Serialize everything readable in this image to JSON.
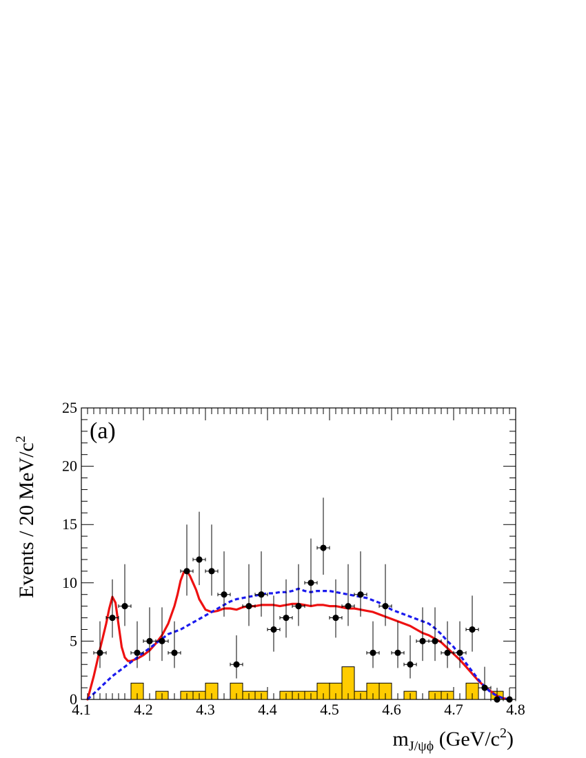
{
  "chart_data": {
    "type": "scatter",
    "panel_label": "(a)",
    "xlabel": {
      "main": "m",
      "sub": "J/ψϕ",
      "unit_pre": " (GeV/c",
      "unit_sup": "2",
      "unit_post": ")"
    },
    "ylabel": {
      "main": "Events / 20 MeV/c",
      "sup": "2"
    },
    "xlim": [
      4.1,
      4.8
    ],
    "ylim": [
      0,
      25
    ],
    "x_ticks": [
      "4.1",
      "4.2",
      "4.3",
      "4.4",
      "4.5",
      "4.6",
      "4.7",
      "4.8"
    ],
    "y_ticks": [
      "0",
      "5",
      "10",
      "15",
      "20",
      "25"
    ],
    "grid": false,
    "data_points": {
      "x": [
        4.13,
        4.15,
        4.17,
        4.19,
        4.21,
        4.23,
        4.25,
        4.27,
        4.29,
        4.31,
        4.33,
        4.35,
        4.37,
        4.39,
        4.41,
        4.43,
        4.45,
        4.47,
        4.49,
        4.51,
        4.53,
        4.55,
        4.57,
        4.59,
        4.61,
        4.63,
        4.65,
        4.67,
        4.69,
        4.71,
        4.73,
        4.75,
        4.77,
        4.79
      ],
      "y": [
        4,
        7,
        8,
        4,
        5,
        5,
        4,
        11,
        12,
        11,
        9,
        3,
        8,
        9,
        6,
        7,
        8,
        10,
        13,
        7,
        8,
        9,
        4,
        8,
        4,
        3,
        5,
        5,
        4,
        4,
        6,
        1,
        0,
        0
      ],
      "x_half_width": 0.01,
      "color": "#000000"
    },
    "background_histogram": {
      "bin_width": 0.02,
      "bin_starts": [
        4.18,
        4.22,
        4.26,
        4.28,
        4.3,
        4.34,
        4.36,
        4.38,
        4.42,
        4.44,
        4.46,
        4.48,
        4.5,
        4.52,
        4.54,
        4.56,
        4.58,
        4.62,
        4.66,
        4.68,
        4.72,
        4.76
      ],
      "values": [
        1.4,
        0.7,
        0.7,
        0.7,
        1.4,
        1.4,
        0.7,
        0.7,
        0.7,
        0.7,
        0.7,
        1.4,
        1.4,
        2.8,
        0.7,
        1.4,
        1.4,
        0.7,
        0.7,
        0.7,
        1.4,
        0.7
      ],
      "fill_color": "#ffcc00",
      "edge_color": "#000000"
    },
    "series": [
      {
        "style": "solid",
        "color": "#ee1111",
        "x": [
          4.11,
          4.12,
          4.13,
          4.14,
          4.145,
          4.15,
          4.155,
          4.16,
          4.165,
          4.17,
          4.175,
          4.18,
          4.19,
          4.2,
          4.21,
          4.22,
          4.23,
          4.24,
          4.25,
          4.255,
          4.26,
          4.265,
          4.27,
          4.275,
          4.28,
          4.285,
          4.29,
          4.3,
          4.31,
          4.32,
          4.33,
          4.34,
          4.35,
          4.36,
          4.37,
          4.38,
          4.39,
          4.4,
          4.41,
          4.42,
          4.43,
          4.44,
          4.45,
          4.46,
          4.47,
          4.48,
          4.49,
          4.5,
          4.51,
          4.52,
          4.53,
          4.54,
          4.55,
          4.56,
          4.57,
          4.58,
          4.59,
          4.6,
          4.61,
          4.62,
          4.63,
          4.64,
          4.65,
          4.66,
          4.67,
          4.68,
          4.69,
          4.7,
          4.71,
          4.72,
          4.73,
          4.74,
          4.75,
          4.76,
          4.77,
          4.78,
          4.79
        ],
        "y": [
          0.0,
          2.0,
          4.3,
          6.5,
          7.8,
          8.8,
          8.3,
          6.4,
          4.5,
          3.6,
          3.3,
          3.3,
          3.5,
          3.8,
          4.2,
          4.8,
          5.5,
          6.5,
          8.0,
          9.0,
          10.2,
          10.9,
          11.0,
          10.6,
          10.0,
          9.4,
          8.6,
          7.7,
          7.5,
          7.6,
          7.8,
          7.8,
          7.7,
          7.9,
          8.0,
          8.0,
          8.1,
          8.1,
          8.1,
          8.0,
          8.1,
          8.2,
          8.2,
          8.1,
          8.0,
          8.1,
          8.1,
          8.0,
          8.0,
          7.9,
          7.8,
          7.8,
          7.7,
          7.6,
          7.5,
          7.3,
          7.1,
          6.9,
          6.7,
          6.5,
          6.3,
          6.0,
          5.7,
          5.5,
          5.2,
          4.9,
          4.4,
          3.9,
          3.4,
          2.8,
          2.2,
          1.6,
          1.1,
          0.7,
          0.3,
          0.1,
          0.0
        ]
      },
      {
        "style": "dashed",
        "color": "#1a1aee",
        "x": [
          4.11,
          4.12,
          4.13,
          4.14,
          4.15,
          4.16,
          4.17,
          4.18,
          4.19,
          4.2,
          4.21,
          4.22,
          4.23,
          4.24,
          4.25,
          4.26,
          4.27,
          4.28,
          4.29,
          4.3,
          4.31,
          4.32,
          4.33,
          4.34,
          4.35,
          4.36,
          4.37,
          4.38,
          4.39,
          4.4,
          4.41,
          4.42,
          4.43,
          4.44,
          4.45,
          4.46,
          4.47,
          4.48,
          4.49,
          4.5,
          4.51,
          4.52,
          4.53,
          4.54,
          4.55,
          4.56,
          4.57,
          4.58,
          4.59,
          4.6,
          4.61,
          4.62,
          4.63,
          4.64,
          4.65,
          4.66,
          4.67,
          4.68,
          4.69,
          4.7,
          4.71,
          4.72,
          4.73,
          4.74,
          4.75,
          4.76,
          4.77,
          4.78,
          4.79
        ],
        "y": [
          0.0,
          0.5,
          1.0,
          1.5,
          2.0,
          2.4,
          2.8,
          3.2,
          3.6,
          4.0,
          4.4,
          4.8,
          5.2,
          5.6,
          5.8,
          6.0,
          6.3,
          6.6,
          6.9,
          7.2,
          7.5,
          7.8,
          8.1,
          8.4,
          8.6,
          8.7,
          8.8,
          8.9,
          9.0,
          9.1,
          9.1,
          9.2,
          9.2,
          9.3,
          9.5,
          9.3,
          9.2,
          9.3,
          9.3,
          9.3,
          9.2,
          9.1,
          9.0,
          8.9,
          8.8,
          8.7,
          8.5,
          8.3,
          8.0,
          7.7,
          7.5,
          7.3,
          7.1,
          6.9,
          6.7,
          6.5,
          6.1,
          5.6,
          5.0,
          4.5,
          3.8,
          3.1,
          2.4,
          1.7,
          1.1,
          0.6,
          0.3,
          0.1,
          0.0
        ]
      }
    ],
    "error_bars_y": [
      [
        2.7,
        6.7
      ],
      [
        5.3,
        10.3
      ],
      [
        6.3,
        11.6
      ],
      [
        2.7,
        6.7
      ],
      [
        3.3,
        7.9
      ],
      [
        3.3,
        7.9
      ],
      [
        2.7,
        6.7
      ],
      [
        8.9,
        15.0
      ],
      [
        9.8,
        16.1
      ],
      [
        8.9,
        15.0
      ],
      [
        7.1,
        12.7
      ],
      [
        1.8,
        5.5
      ],
      [
        6.3,
        11.6
      ],
      [
        7.1,
        12.7
      ],
      [
        4.1,
        8.9
      ],
      [
        5.3,
        10.3
      ],
      [
        6.3,
        11.6
      ],
      [
        8.0,
        13.8
      ],
      [
        10.7,
        17.3
      ],
      [
        5.3,
        10.3
      ],
      [
        6.3,
        11.6
      ],
      [
        7.1,
        12.7
      ],
      [
        2.7,
        6.7
      ],
      [
        6.3,
        11.6
      ],
      [
        2.7,
        6.7
      ],
      [
        1.8,
        5.5
      ],
      [
        3.3,
        7.9
      ],
      [
        3.3,
        7.9
      ],
      [
        2.7,
        6.7
      ],
      [
        2.7,
        6.7
      ],
      [
        4.1,
        8.9
      ],
      [
        0.4,
        2.8
      ],
      [
        0.0,
        1.0
      ],
      [
        0.0,
        1.0
      ]
    ]
  }
}
